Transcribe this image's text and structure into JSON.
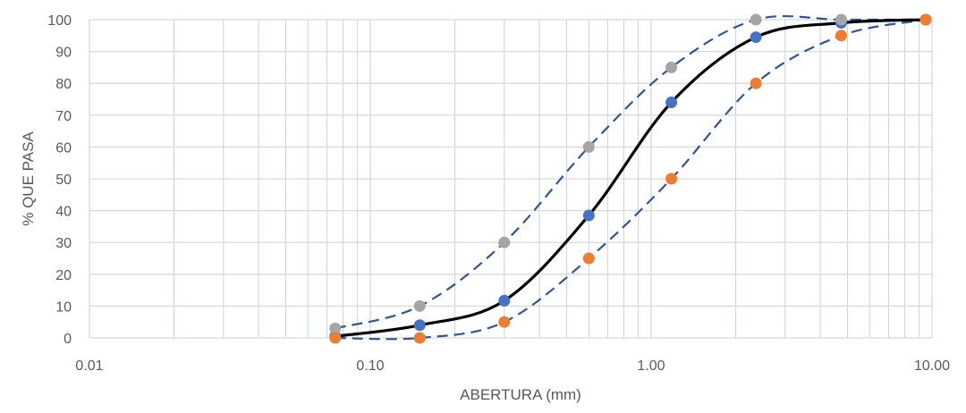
{
  "chart_data": {
    "type": "scatter",
    "title": "",
    "xlabel": "ABERTURA (mm)",
    "ylabel": "% QUE PASA",
    "xscale": "log",
    "xlim": [
      0.01,
      10
    ],
    "ylim": [
      0,
      100
    ],
    "xticks": [
      "0.01",
      "0.10",
      "1.00",
      "10.00"
    ],
    "yticks": [
      "0",
      "10",
      "20",
      "30",
      "40",
      "50",
      "60",
      "70",
      "80",
      "90",
      "100"
    ],
    "grid": true,
    "legend": "none",
    "series": [
      {
        "color": "#000000",
        "style": "solid-line",
        "points": [
          [
            0.075,
            0.5
          ],
          [
            0.15,
            4
          ],
          [
            0.3,
            11.7
          ],
          [
            0.6,
            38.5
          ],
          [
            1.18,
            74
          ],
          [
            2.36,
            94.5
          ],
          [
            4.75,
            99
          ],
          [
            9.5,
            100
          ]
        ]
      },
      {
        "color": "#4472C4",
        "style": "markers",
        "points": [
          [
            0.075,
            0.5
          ],
          [
            0.15,
            4
          ],
          [
            0.3,
            11.7
          ],
          [
            0.6,
            38.5
          ],
          [
            1.18,
            74
          ],
          [
            2.36,
            94.5
          ],
          [
            4.75,
            99
          ],
          [
            9.5,
            100
          ]
        ]
      },
      {
        "color": "#A5A5A5",
        "style": "markers-dashed",
        "points": [
          [
            0.075,
            3
          ],
          [
            0.15,
            10
          ],
          [
            0.3,
            30
          ],
          [
            0.6,
            60
          ],
          [
            1.18,
            85
          ],
          [
            2.36,
            100
          ],
          [
            4.75,
            100
          ],
          [
            9.5,
            100
          ]
        ]
      },
      {
        "color": "#ED7D31",
        "style": "markers-dashed",
        "points": [
          [
            0.075,
            0
          ],
          [
            0.15,
            0
          ],
          [
            0.3,
            5
          ],
          [
            0.6,
            25
          ],
          [
            1.18,
            50
          ],
          [
            2.36,
            80
          ],
          [
            4.75,
            95
          ],
          [
            9.5,
            100
          ]
        ]
      }
    ],
    "colors": {
      "dashed_line": "#2F5597",
      "major_grid": "#D9D9D9",
      "minor_grid": "#C5D3EA"
    }
  }
}
